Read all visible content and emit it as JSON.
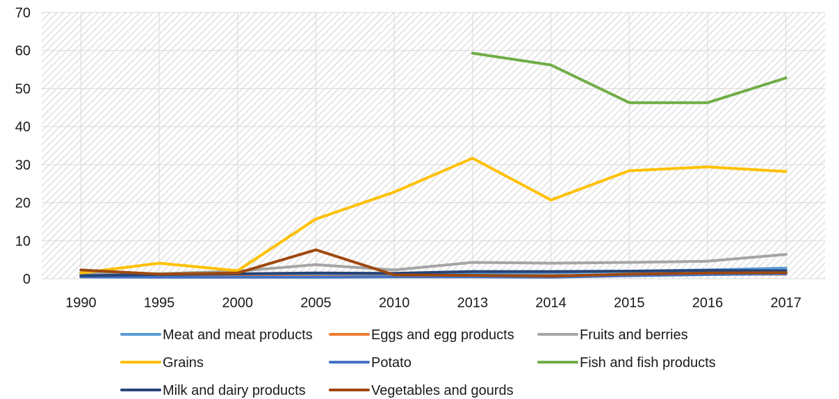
{
  "chart_data": {
    "type": "line",
    "title": "",
    "xlabel": "",
    "ylabel": "",
    "categories": [
      "1990",
      "1995",
      "2000",
      "2005",
      "2010",
      "2013",
      "2014",
      "2015",
      "2016",
      "2017"
    ],
    "ylim": [
      0,
      70
    ],
    "yticks": [
      0,
      10,
      20,
      30,
      40,
      50,
      60,
      70
    ],
    "grid": true,
    "legend_position": "bottom",
    "series": [
      {
        "name": "Meat and meat products",
        "color": "#5b9bd5",
        "values": [
          1.2,
          0.8,
          0.9,
          1.0,
          1.0,
          1.5,
          1.5,
          2.0,
          2.3,
          2.8
        ]
      },
      {
        "name": "Eggs and egg products",
        "color": "#ed7d31",
        "values": [
          0.5,
          0.5,
          0.6,
          0.6,
          0.6,
          0.8,
          0.8,
          1.0,
          1.2,
          1.2
        ]
      },
      {
        "name": "Fruits and berries",
        "color": "#a5a5a5",
        "values": [
          1.5,
          1.3,
          2.0,
          3.7,
          2.3,
          4.3,
          4.1,
          4.3,
          4.6,
          6.4
        ]
      },
      {
        "name": "Grains",
        "color": "#ffc000",
        "values": [
          1.5,
          4.1,
          2.1,
          15.7,
          22.8,
          31.7,
          20.7,
          28.4,
          29.4,
          28.2
        ]
      },
      {
        "name": "Potato",
        "color": "#4472c4",
        "values": [
          0.5,
          0.4,
          0.4,
          0.4,
          0.5,
          0.5,
          0.4,
          0.8,
          1.1,
          1.3
        ]
      },
      {
        "name": "Fish and fish products",
        "color": "#70ad47",
        "values": [
          null,
          null,
          null,
          null,
          null,
          59.3,
          56.2,
          46.3,
          46.3,
          52.8
        ]
      },
      {
        "name": "Milk and dairy products",
        "color": "#264478",
        "values": [
          0.8,
          1.1,
          1.3,
          1.5,
          1.4,
          1.9,
          1.9,
          2.0,
          2.2,
          2.1
        ]
      },
      {
        "name": "Vegetables and gourds",
        "color": "#9e480e",
        "values": [
          2.3,
          1.2,
          1.5,
          7.6,
          1.0,
          0.9,
          0.7,
          1.2,
          1.5,
          1.6
        ]
      }
    ]
  }
}
